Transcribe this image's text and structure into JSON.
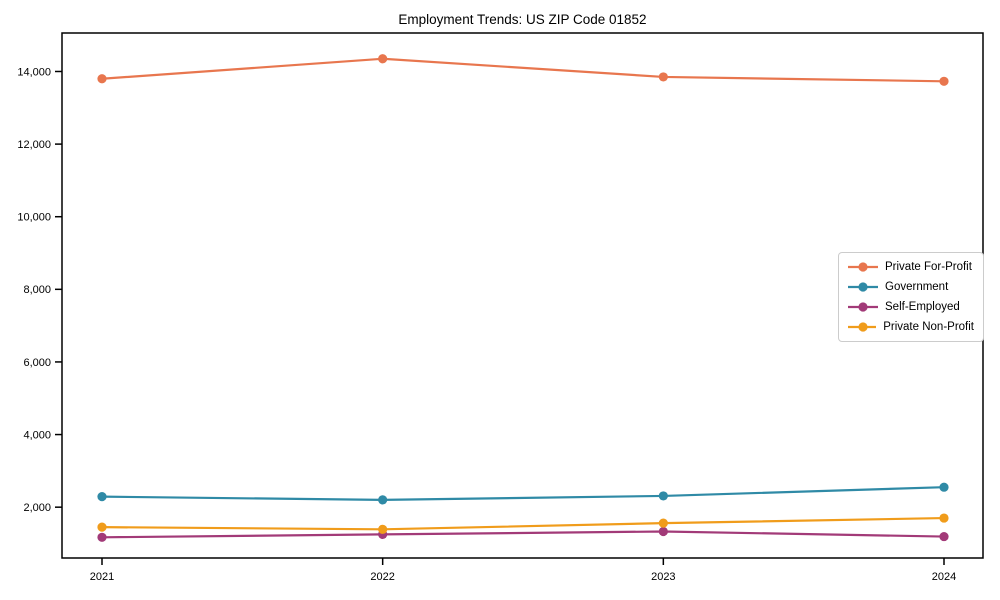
{
  "chart_data": {
    "type": "line",
    "title": "Employment Trends: US ZIP Code 01852",
    "xlabel": "",
    "ylabel": "",
    "categories": [
      "2021",
      "2022",
      "2023",
      "2024"
    ],
    "series": [
      {
        "name": "Private For-Profit",
        "color": "#e8764e",
        "values": [
          13800,
          14350,
          13850,
          13730
        ]
      },
      {
        "name": "Government",
        "color": "#2f8aa6",
        "values": [
          2290,
          2200,
          2310,
          2550
        ]
      },
      {
        "name": "Self-Employed",
        "color": "#a23a78",
        "values": [
          1170,
          1250,
          1330,
          1190
        ]
      },
      {
        "name": "Private Non-Profit",
        "color": "#f09c1b",
        "values": [
          1450,
          1390,
          1560,
          1700
        ]
      }
    ],
    "yticks": [
      2000,
      4000,
      6000,
      8000,
      10000,
      12000,
      14000
    ],
    "ytick_labels": [
      "2,000",
      "4,000",
      "6,000",
      "8,000",
      "10,000",
      "12,000",
      "14,000"
    ],
    "ylim": [
      600,
      15060
    ],
    "grid": false,
    "legend_position": "center right",
    "marker": "circle",
    "axis_color": "#000000",
    "tick_label_color": "#000000",
    "background": "#ffffff"
  }
}
